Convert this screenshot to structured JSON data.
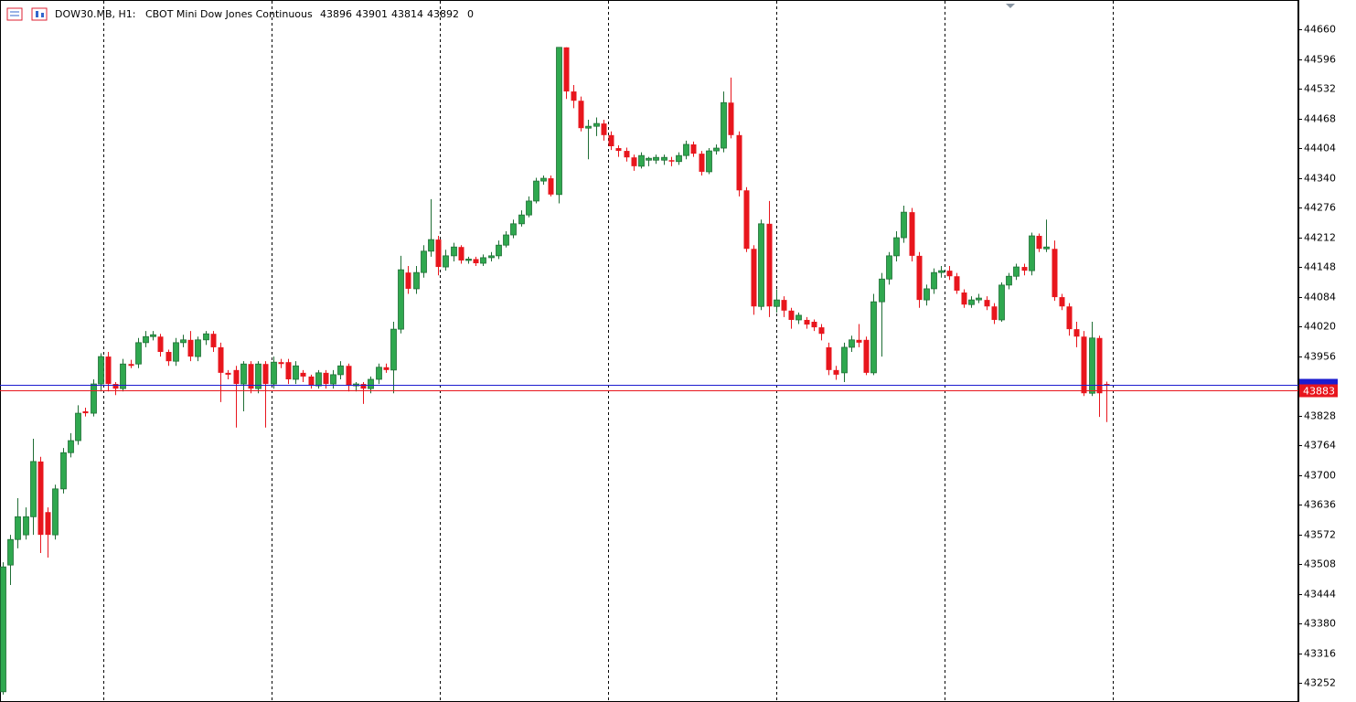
{
  "chart_data": {
    "type": "candlestick",
    "symbol": "DOW30.MB, H1:",
    "description": "CBOT Mini Dow Jones Continuous",
    "volume": 0,
    "open": [
      43233,
      43506,
      43561,
      43571,
      43610,
      43729,
      43620,
      43571,
      43670,
      43748,
      43774,
      43837,
      43833,
      43896,
      43955,
      43896,
      43886,
      43939,
      43939,
      43985,
      43998,
      43998,
      43965,
      43945,
      43985,
      43991,
      43955,
      43991,
      44004,
      43975,
      43920,
      43926,
      43896,
      43939,
      43886,
      43939,
      43896,
      43943,
      43943,
      43906,
      43920,
      43912,
      43892,
      43920,
      43896,
      43916,
      43935,
      43892,
      43896,
      43886,
      43906,
      43932,
      43926,
      44014,
      44136,
      44101,
      44136,
      44182,
      44207,
      44148,
      44172,
      44191,
      44162,
      44165,
      44156,
      44168,
      44172,
      44195,
      44217,
      44241,
      44260,
      44290,
      44333,
      44339,
      44304,
      44621,
      44526,
      44506,
      44447,
      44451,
      44457,
      44432,
      44404,
      44398,
      44384,
      44365,
      44378,
      44378,
      44378,
      44378,
      44375,
      44388,
      44412,
      44392,
      44353,
      44398,
      44404,
      44502,
      44432,
      44313,
      44187,
      44063,
      44241,
      44063,
      44077,
      44054,
      44034,
      44034,
      44030,
      44018,
      43975,
      43926,
      43920,
      43975,
      43991,
      43991,
      43920,
      44073,
      44122,
      44172,
      44211,
      44266,
      44172,
      44077,
      44101,
      44136,
      44140,
      44128,
      44093,
      44067,
      44077,
      44077,
      44063,
      44034,
      44109,
      44128,
      44148,
      44140,
      44215,
      44187,
      44187,
      44083,
      44063,
      44014,
      43998,
      43876,
      43995,
      43896
    ],
    "high": [
      43512,
      43571,
      43650,
      43630,
      43778,
      43739,
      43630,
      43679,
      43758,
      43790,
      43850,
      43845,
      43906,
      43962,
      43965,
      43900,
      43950,
      43948,
      43995,
      44010,
      44010,
      44004,
      43970,
      43995,
      44002,
      44010,
      43998,
      44010,
      44010,
      43985,
      43926,
      43935,
      43945,
      43945,
      43945,
      43945,
      43955,
      43950,
      43950,
      43945,
      43926,
      43916,
      43926,
      43926,
      43926,
      43945,
      43940,
      43900,
      43900,
      43912,
      43940,
      43940,
      44030,
      44172,
      44150,
      44150,
      44195,
      44294,
      44215,
      44185,
      44200,
      44195,
      44170,
      44170,
      44175,
      44180,
      44205,
      44225,
      44250,
      44270,
      44300,
      44340,
      44345,
      44345,
      44621,
      44621,
      44540,
      44515,
      44465,
      44470,
      44465,
      44440,
      44410,
      44405,
      44390,
      44395,
      44385,
      44390,
      44390,
      44385,
      44395,
      44420,
      44418,
      44398,
      44404,
      44412,
      44526,
      44556,
      44440,
      44320,
      44195,
      44250,
      44290,
      44100,
      44085,
      44060,
      44050,
      44040,
      44035,
      44025,
      43985,
      43935,
      43985,
      44000,
      44025,
      43998,
      44090,
      44135,
      44180,
      44225,
      44280,
      44275,
      44180,
      44110,
      44145,
      44150,
      44150,
      44135,
      44100,
      44085,
      44090,
      44085,
      44070,
      44115,
      44135,
      44155,
      44155,
      44222,
      44220,
      44250,
      44205,
      44090,
      44070,
      44030,
      44010,
      44030,
      44000,
      43901
    ],
    "low": [
      43227,
      43463,
      43542,
      43561,
      43571,
      43532,
      43522,
      43561,
      43660,
      43738,
      43765,
      43826,
      43826,
      43880,
      43880,
      43872,
      43880,
      43930,
      43930,
      43975,
      43990,
      43955,
      43935,
      43935,
      43975,
      43945,
      43945,
      43980,
      43965,
      43857,
      43906,
      43802,
      43837,
      43876,
      43876,
      43802,
      43886,
      43930,
      43896,
      43896,
      43900,
      43886,
      43886,
      43886,
      43886,
      43906,
      43880,
      43880,
      43853,
      43876,
      43896,
      43920,
      43876,
      44005,
      44090,
      44090,
      44125,
      44170,
      44130,
      44140,
      44160,
      44155,
      44155,
      44150,
      44150,
      44160,
      44165,
      44190,
      44210,
      44235,
      44255,
      44285,
      44325,
      44300,
      44285,
      44510,
      44490,
      44440,
      44380,
      44430,
      44420,
      44400,
      44385,
      44375,
      44355,
      44360,
      44365,
      44370,
      44368,
      44365,
      44368,
      44380,
      44385,
      44345,
      44348,
      44390,
      44395,
      44425,
      44300,
      44180,
      44045,
      44055,
      44040,
      44050,
      44040,
      44015,
      44025,
      44015,
      44010,
      43990,
      43915,
      43905,
      43900,
      43965,
      43975,
      43915,
      43915,
      43955,
      44110,
      44160,
      44200,
      44160,
      44060,
      44065,
      44090,
      44125,
      44120,
      44090,
      44060,
      44060,
      44070,
      44055,
      44025,
      44030,
      44100,
      44120,
      44130,
      44130,
      44180,
      44180,
      44075,
      44055,
      44000,
      43975,
      43870,
      43870,
      43825,
      43814
    ],
    "close": [
      43502,
      43561,
      43610,
      43610,
      43729,
      43571,
      43571,
      43670,
      43748,
      43774,
      43833,
      43833,
      43896,
      43955,
      43896,
      43886,
      43939,
      43935,
      43985,
      43998,
      44002,
      43965,
      43945,
      43985,
      43991,
      43955,
      43991,
      44004,
      43975,
      43920,
      43916,
      43896,
      43939,
      43886,
      43939,
      43896,
      43943,
      43939,
      43906,
      43935,
      43912,
      43892,
      43920,
      43896,
      43916,
      43935,
      43892,
      43896,
      43886,
      43906,
      43932,
      43926,
      44014,
      44142,
      44101,
      44136,
      44182,
      44207,
      44148,
      44172,
      44191,
      44162,
      44165,
      44156,
      44168,
      44172,
      44195,
      44217,
      44241,
      44260,
      44290,
      44333,
      44339,
      44304,
      44621,
      44526,
      44506,
      44447,
      44451,
      44457,
      44432,
      44408,
      44398,
      44384,
      44365,
      44388,
      44382,
      44384,
      44384,
      44375,
      44388,
      44412,
      44392,
      44353,
      44398,
      44404,
      44502,
      44432,
      44313,
      44187,
      44063,
      44241,
      44063,
      44077,
      44054,
      44034,
      44044,
      44024,
      44018,
      44004,
      43926,
      43916,
      43975,
      43991,
      43985,
      43920,
      44073,
      44122,
      44172,
      44211,
      44266,
      44172,
      44077,
      44101,
      44136,
      44140,
      44128,
      44097,
      44067,
      44077,
      44081,
      44063,
      44034,
      44109,
      44128,
      44148,
      44140,
      44215,
      44187,
      44191,
      44083,
      44063,
      44014,
      43998,
      43876,
      43995,
      43876,
      43892
    ],
    "up_color": "#2fa84f",
    "down_color": "#e8161d",
    "bid": 43883,
    "ask": 43894,
    "bid_color": "#e8161d",
    "ask_color": "#1c1ccf",
    "ylim": [
      43211,
      44723
    ],
    "yticks": [
      44660,
      44596,
      44532,
      44468,
      44404,
      44340,
      44276,
      44212,
      44148,
      44084,
      44020,
      43956,
      43828,
      43764,
      43700,
      43636,
      43572,
      43508,
      43444,
      43380,
      43316,
      43252
    ]
  }
}
